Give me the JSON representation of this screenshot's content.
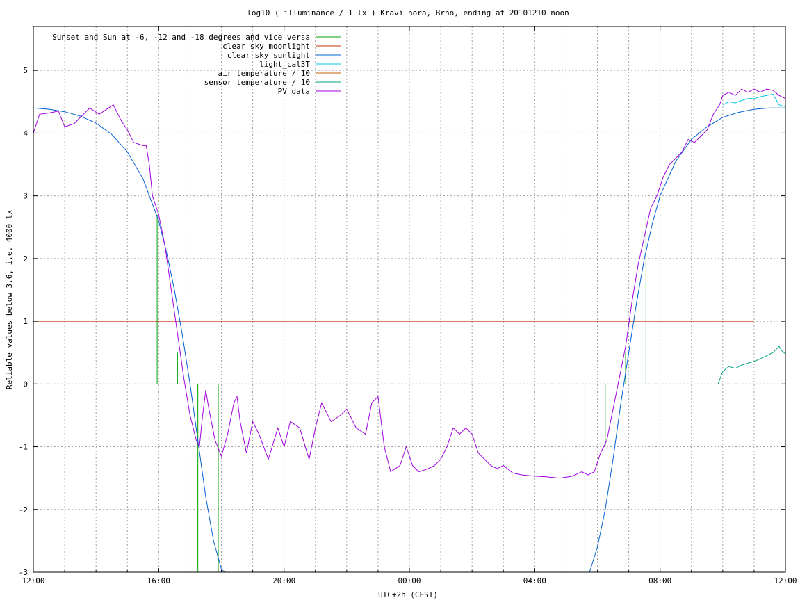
{
  "chart_data": {
    "type": "line",
    "title": "log10 ( illuminance / 1 lx ) Kravi hora, Brno, ending at 20101210 noon",
    "xlabel": "UTC+2h (CEST)",
    "ylabel": "Reliable values below 3.6, i.e. 4000 lx",
    "xlim": [
      0,
      24
    ],
    "ylim": [
      -3,
      5.7
    ],
    "x_unit": "hours after 12:00 (12:00 to next-day 12:00)",
    "x_ticks": [
      {
        "x": 0,
        "label": "12:00"
      },
      {
        "x": 4,
        "label": "16:00"
      },
      {
        "x": 8,
        "label": "20:00"
      },
      {
        "x": 12,
        "label": "00:00"
      },
      {
        "x": 16,
        "label": "04:00"
      },
      {
        "x": 20,
        "label": "08:00"
      },
      {
        "x": 24,
        "label": "12:00"
      }
    ],
    "x_minor_grid": [
      1,
      2,
      3,
      4,
      5,
      6,
      7,
      8,
      9,
      10,
      11,
      12,
      13,
      14,
      15,
      16,
      17,
      18,
      19,
      20,
      21,
      22,
      23
    ],
    "y_ticks": [
      -3,
      -2,
      -1,
      0,
      1,
      2,
      3,
      4,
      5
    ],
    "grid": true,
    "legend_position": "top-left",
    "series": [
      {
        "name": "Sunset and Sun at -6, -12 and -18 degrees and vice versa",
        "color": "#00a000",
        "style": "impulses",
        "impulses": [
          {
            "x": 3.95,
            "y": 2.7
          },
          {
            "x": 4.6,
            "y": 0.5
          },
          {
            "x": 5.25,
            "y": -3
          },
          {
            "x": 5.9,
            "y": -3
          },
          {
            "x": 17.6,
            "y": -3
          },
          {
            "x": 18.25,
            "y": -1
          },
          {
            "x": 18.9,
            "y": 0.5
          },
          {
            "x": 19.55,
            "y": 2.7
          }
        ]
      },
      {
        "name": "clear sky moonlight",
        "color": "#c03000",
        "points": [
          [
            0,
            1.0
          ],
          [
            23.0,
            1.0
          ]
        ]
      },
      {
        "name": "clear sky sunlight",
        "color": "#0060d0",
        "points": [
          [
            0,
            4.4
          ],
          [
            0.5,
            4.38
          ],
          [
            1,
            4.34
          ],
          [
            1.5,
            4.27
          ],
          [
            2,
            4.16
          ],
          [
            2.5,
            3.98
          ],
          [
            3,
            3.7
          ],
          [
            3.5,
            3.27
          ],
          [
            4,
            2.6
          ],
          [
            4.25,
            2.1
          ],
          [
            4.5,
            1.5
          ],
          [
            4.75,
            0.8
          ],
          [
            5,
            0.0
          ],
          [
            5.25,
            -0.9
          ],
          [
            5.5,
            -1.8
          ],
          [
            5.75,
            -2.5
          ],
          [
            6,
            -2.95
          ],
          [
            6.1,
            -3.0
          ]
        ],
        "points_2": [
          [
            17.75,
            -3.0
          ],
          [
            18,
            -2.6
          ],
          [
            18.25,
            -2.0
          ],
          [
            18.5,
            -1.2
          ],
          [
            18.75,
            -0.3
          ],
          [
            19,
            0.5
          ],
          [
            19.25,
            1.3
          ],
          [
            19.5,
            2.0
          ],
          [
            19.75,
            2.55
          ],
          [
            20,
            3.0
          ],
          [
            20.5,
            3.55
          ],
          [
            21,
            3.9
          ],
          [
            21.5,
            4.1
          ],
          [
            22,
            4.25
          ],
          [
            22.5,
            4.33
          ],
          [
            23,
            4.38
          ],
          [
            23.5,
            4.4
          ],
          [
            24,
            4.4
          ]
        ]
      },
      {
        "name": "light_cal3T",
        "color": "#00c8e0",
        "points": [
          [
            22.0,
            4.45
          ],
          [
            22.2,
            4.5
          ],
          [
            22.4,
            4.48
          ],
          [
            22.6,
            4.52
          ],
          [
            22.8,
            4.55
          ],
          [
            23.0,
            4.55
          ],
          [
            23.2,
            4.58
          ],
          [
            23.4,
            4.6
          ],
          [
            23.6,
            4.62
          ],
          [
            23.8,
            4.45
          ],
          [
            24.0,
            4.42
          ]
        ]
      },
      {
        "name": "air temperature / 10",
        "color": "#c06000",
        "points": []
      },
      {
        "name": "sensor temperature / 10",
        "color": "#00a080",
        "points": [
          [
            21.85,
            0.0
          ],
          [
            22.0,
            0.2
          ],
          [
            22.2,
            0.28
          ],
          [
            22.4,
            0.25
          ],
          [
            22.6,
            0.3
          ],
          [
            22.8,
            0.33
          ],
          [
            23.0,
            0.36
          ],
          [
            23.2,
            0.4
          ],
          [
            23.4,
            0.45
          ],
          [
            23.6,
            0.5
          ],
          [
            23.8,
            0.6
          ],
          [
            23.9,
            0.52
          ],
          [
            24.0,
            0.48
          ]
        ]
      },
      {
        "name": "PV data",
        "color": "#a000e0",
        "points": [
          [
            0,
            4.0
          ],
          [
            0.2,
            4.3
          ],
          [
            0.5,
            4.32
          ],
          [
            0.8,
            4.35
          ],
          [
            1.0,
            4.1
          ],
          [
            1.3,
            4.15
          ],
          [
            1.6,
            4.3
          ],
          [
            1.8,
            4.4
          ],
          [
            2.1,
            4.3
          ],
          [
            2.4,
            4.4
          ],
          [
            2.55,
            4.45
          ],
          [
            2.8,
            4.2
          ],
          [
            3.0,
            4.05
          ],
          [
            3.2,
            3.85
          ],
          [
            3.5,
            3.8
          ],
          [
            3.6,
            3.8
          ],
          [
            3.7,
            3.5
          ],
          [
            3.8,
            3.0
          ],
          [
            4.0,
            2.7
          ],
          [
            4.2,
            2.2
          ],
          [
            4.4,
            1.5
          ],
          [
            4.6,
            0.8
          ],
          [
            4.8,
            0.1
          ],
          [
            5.0,
            -0.5
          ],
          [
            5.2,
            -0.9
          ],
          [
            5.3,
            -1.0
          ],
          [
            5.4,
            -0.5
          ],
          [
            5.5,
            -0.1
          ],
          [
            5.6,
            -0.4
          ],
          [
            5.8,
            -0.9
          ],
          [
            6.0,
            -1.15
          ],
          [
            6.2,
            -0.8
          ],
          [
            6.4,
            -0.3
          ],
          [
            6.5,
            -0.2
          ],
          [
            6.6,
            -0.6
          ],
          [
            6.8,
            -1.1
          ],
          [
            7.0,
            -0.6
          ],
          [
            7.2,
            -0.8
          ],
          [
            7.5,
            -1.2
          ],
          [
            7.8,
            -0.7
          ],
          [
            8.0,
            -1.0
          ],
          [
            8.2,
            -0.6
          ],
          [
            8.5,
            -0.7
          ],
          [
            8.8,
            -1.2
          ],
          [
            9.0,
            -0.7
          ],
          [
            9.2,
            -0.3
          ],
          [
            9.5,
            -0.6
          ],
          [
            9.8,
            -0.5
          ],
          [
            10.0,
            -0.4
          ],
          [
            10.3,
            -0.7
          ],
          [
            10.6,
            -0.8
          ],
          [
            10.8,
            -0.3
          ],
          [
            11.0,
            -0.2
          ],
          [
            11.2,
            -1.0
          ],
          [
            11.4,
            -1.4
          ],
          [
            11.7,
            -1.3
          ],
          [
            11.9,
            -1.0
          ],
          [
            12.1,
            -1.3
          ],
          [
            12.3,
            -1.4
          ],
          [
            12.6,
            -1.35
          ],
          [
            12.8,
            -1.3
          ],
          [
            13.0,
            -1.2
          ],
          [
            13.2,
            -1.0
          ],
          [
            13.4,
            -0.7
          ],
          [
            13.6,
            -0.8
          ],
          [
            13.8,
            -0.7
          ],
          [
            14.0,
            -0.8
          ],
          [
            14.2,
            -1.1
          ],
          [
            14.4,
            -1.2
          ],
          [
            14.6,
            -1.3
          ],
          [
            14.8,
            -1.35
          ],
          [
            15.0,
            -1.3
          ],
          [
            15.3,
            -1.42
          ],
          [
            15.6,
            -1.45
          ],
          [
            16.0,
            -1.47
          ],
          [
            16.4,
            -1.48
          ],
          [
            16.8,
            -1.5
          ],
          [
            17.2,
            -1.47
          ],
          [
            17.5,
            -1.4
          ],
          [
            17.7,
            -1.45
          ],
          [
            17.9,
            -1.4
          ],
          [
            18.1,
            -1.1
          ],
          [
            18.3,
            -0.9
          ],
          [
            18.5,
            -0.4
          ],
          [
            18.7,
            0.1
          ],
          [
            18.9,
            0.6
          ],
          [
            19.1,
            1.3
          ],
          [
            19.3,
            1.9
          ],
          [
            19.5,
            2.35
          ],
          [
            19.7,
            2.8
          ],
          [
            19.9,
            3.0
          ],
          [
            20.1,
            3.3
          ],
          [
            20.3,
            3.5
          ],
          [
            20.5,
            3.6
          ],
          [
            20.7,
            3.7
          ],
          [
            20.9,
            3.9
          ],
          [
            21.1,
            3.85
          ],
          [
            21.3,
            3.95
          ],
          [
            21.5,
            4.05
          ],
          [
            21.7,
            4.3
          ],
          [
            21.9,
            4.45
          ],
          [
            22.0,
            4.6
          ],
          [
            22.2,
            4.65
          ],
          [
            22.4,
            4.6
          ],
          [
            22.6,
            4.7
          ],
          [
            22.8,
            4.65
          ],
          [
            23.0,
            4.7
          ],
          [
            23.2,
            4.65
          ],
          [
            23.4,
            4.7
          ],
          [
            23.6,
            4.68
          ],
          [
            23.8,
            4.6
          ],
          [
            24.0,
            4.55
          ]
        ]
      }
    ]
  }
}
